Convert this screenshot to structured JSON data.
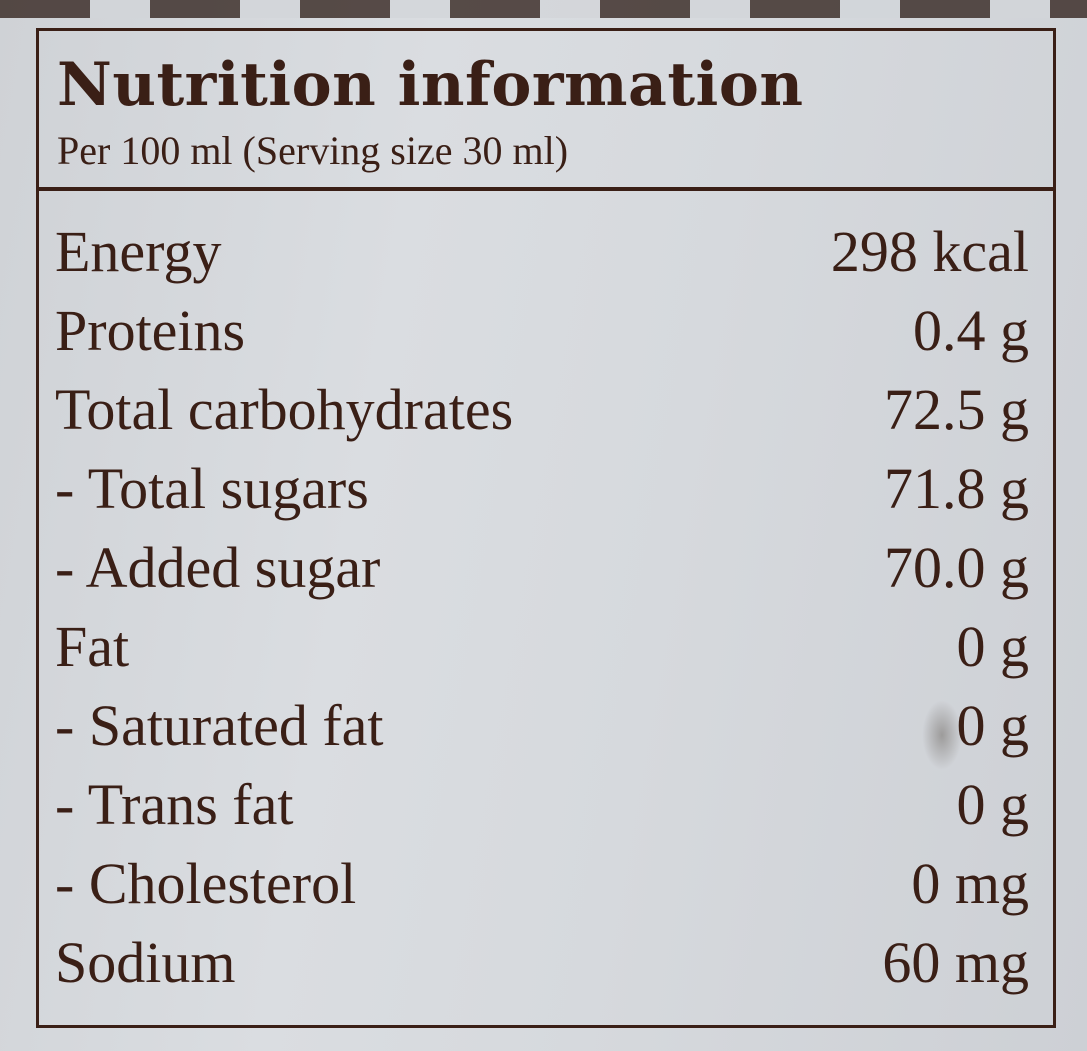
{
  "panel": {
    "title": "Nutrition information",
    "subtitle": "Per 100 ml (Serving size 30 ml)"
  },
  "rows": [
    {
      "name": "Energy",
      "value": "298 kcal"
    },
    {
      "name": "Proteins",
      "value": "0.4 g"
    },
    {
      "name": "Total carbohydrates",
      "value": "72.5 g"
    },
    {
      "name": "- Total sugars",
      "value": "71.8 g"
    },
    {
      "name": "- Added sugar",
      "value": "70.0 g"
    },
    {
      "name": "Fat",
      "value": "0 g"
    },
    {
      "name": "- Saturated fat",
      "value": "0 g"
    },
    {
      "name": "- Trans fat",
      "value": "0 g"
    },
    {
      "name": "- Cholesterol",
      "value": "0 mg"
    },
    {
      "name": "Sodium",
      "value": "60 mg"
    }
  ],
  "colors": {
    "ink": "#3a1f16",
    "paper": "#d8dbdf"
  }
}
